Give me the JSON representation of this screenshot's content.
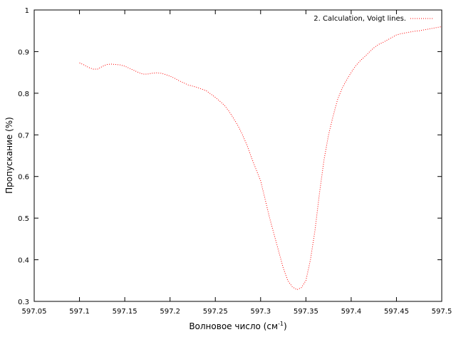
{
  "chart_data": {
    "type": "line",
    "xlabel_main": "Волновое число (см",
    "xlabel_sup": "-1",
    "xlabel_close": ")",
    "ylabel": "Пропускание (%)",
    "xlim": [
      597.05,
      597.5
    ],
    "ylim": [
      0.3,
      1.0
    ],
    "x_ticks": [
      "597.05",
      "597.1",
      "597.15",
      "597.2",
      "597.25",
      "597.3",
      "597.35",
      "597.4",
      "597.45",
      "597.5"
    ],
    "y_ticks": [
      "0.3",
      "0.4",
      "0.5",
      "0.6",
      "0.7",
      "0.8",
      "0.9",
      "1"
    ],
    "grid": false,
    "legend_position": "top-right",
    "series": [
      {
        "name": "2. Calculation, Voigt lines.",
        "color": "#ff0000",
        "style": "dotted",
        "x": [
          597.1,
          597.105,
          597.11,
          597.115,
          597.12,
          597.125,
          597.13,
          597.135,
          597.14,
          597.145,
          597.15,
          597.155,
          597.16,
          597.165,
          597.17,
          597.175,
          597.18,
          597.185,
          597.19,
          597.195,
          597.2,
          597.205,
          597.21,
          597.215,
          597.22,
          597.225,
          597.23,
          597.235,
          597.24,
          597.245,
          597.25,
          597.255,
          597.26,
          597.265,
          597.27,
          597.275,
          597.28,
          597.285,
          597.29,
          597.295,
          597.3,
          597.305,
          597.31,
          597.315,
          597.32,
          597.325,
          597.33,
          597.335,
          597.34,
          597.345,
          597.35,
          597.355,
          597.36,
          597.365,
          597.37,
          597.375,
          597.38,
          597.385,
          597.39,
          597.395,
          597.4,
          597.405,
          597.41,
          597.415,
          597.42,
          597.425,
          597.43,
          597.435,
          597.44,
          597.445,
          597.45,
          597.455,
          597.46,
          597.465,
          597.47,
          597.475,
          597.48,
          597.485,
          597.49,
          597.495,
          597.5
        ],
        "y": [
          0.873,
          0.868,
          0.862,
          0.858,
          0.858,
          0.864,
          0.869,
          0.87,
          0.869,
          0.868,
          0.865,
          0.86,
          0.855,
          0.85,
          0.846,
          0.846,
          0.848,
          0.849,
          0.848,
          0.845,
          0.841,
          0.836,
          0.83,
          0.825,
          0.82,
          0.817,
          0.814,
          0.81,
          0.806,
          0.798,
          0.79,
          0.781,
          0.771,
          0.757,
          0.74,
          0.722,
          0.7,
          0.675,
          0.645,
          0.617,
          0.59,
          0.545,
          0.5,
          0.46,
          0.42,
          0.38,
          0.35,
          0.335,
          0.328,
          0.333,
          0.35,
          0.4,
          0.47,
          0.56,
          0.64,
          0.7,
          0.745,
          0.785,
          0.812,
          0.832,
          0.85,
          0.866,
          0.878,
          0.888,
          0.899,
          0.909,
          0.917,
          0.922,
          0.928,
          0.934,
          0.94,
          0.943,
          0.945,
          0.947,
          0.949,
          0.95,
          0.952,
          0.954,
          0.956,
          0.958,
          0.96
        ]
      }
    ]
  }
}
